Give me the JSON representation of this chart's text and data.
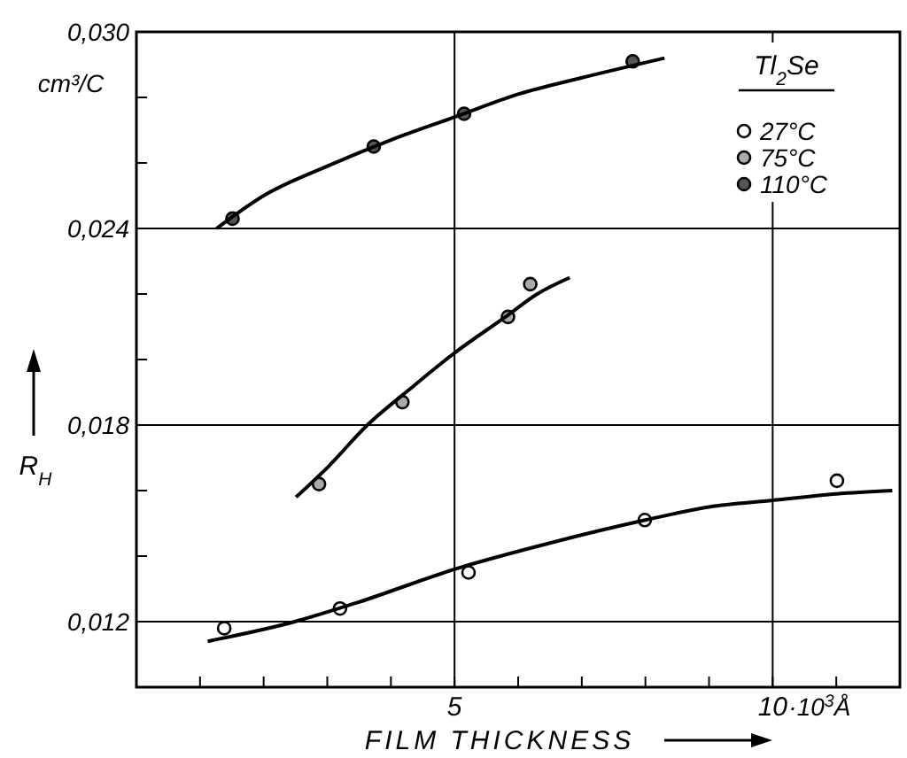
{
  "chart_data": {
    "type": "scatter",
    "xlabel": "FILM THICKNESS",
    "ylabel": "R$_{H}$",
    "legend_title": "Tl$_{2}$Se",
    "annotations": [
      "cm³/C",
      "·10$^{3}$Å"
    ],
    "xlim": [
      0,
      12
    ],
    "xticks": [
      {
        "value": 1,
        "label": null
      },
      {
        "value": 2,
        "label": null
      },
      {
        "value": 3,
        "label": null
      },
      {
        "value": 4,
        "label": null
      },
      5,
      {
        "value": 6,
        "label": null
      },
      {
        "value": 7,
        "label": null
      },
      {
        "value": 8,
        "label": null
      },
      {
        "value": 9,
        "label": null
      },
      10,
      {
        "value": 11,
        "label": null
      }
    ],
    "ylim": [
      0.01,
      0.03
    ],
    "yticks": [
      {
        "value": 0.012,
        "label": "0,012"
      },
      {
        "value": 0.014,
        "label": null
      },
      {
        "value": 0.016,
        "label": null
      },
      {
        "value": 0.018,
        "label": "0,018"
      },
      {
        "value": 0.02,
        "label": null
      },
      {
        "value": 0.022,
        "label": null
      },
      {
        "value": 0.024,
        "label": "0,024"
      },
      {
        "value": 0.026,
        "label": null
      },
      {
        "value": 0.028,
        "label": null
      },
      {
        "value": 0.03,
        "label": "0,030"
      }
    ],
    "grid": true,
    "legend": "top right",
    "marker": "circle",
    "series": [
      {
        "name": "27°C",
        "color": "#ffffff",
        "x": [
          1.38,
          3.2,
          5.22,
          7.99,
          11.01
        ],
        "values": [
          0.0118,
          0.0124,
          0.0135,
          0.0151,
          0.0163
        ]
      },
      {
        "name": "75°C",
        "color": "#aaaaaa",
        "x": [
          2.87,
          4.18,
          5.84,
          6.19
        ],
        "values": [
          0.0162,
          0.0187,
          0.0213,
          0.0223
        ]
      },
      {
        "name": "110°C",
        "color": "#555555",
        "x": [
          1.51,
          3.73,
          5.15,
          7.8
        ],
        "values": [
          0.0243,
          0.0265,
          0.0275,
          0.0291
        ]
      },
      {
        "type": "line",
        "color": "#000000",
        "marker": "none",
        "x": [
          1.12,
          2.49,
          3.5,
          5,
          6.5,
          8,
          9,
          10,
          11,
          11.88
        ],
        "values": [
          0.0114,
          0.012,
          0.0126,
          0.0136,
          0.0144,
          0.0151,
          0.0155,
          0.0157,
          0.0159,
          0.016
        ]
      },
      {
        "type": "line",
        "color": "#000000",
        "marker": "none",
        "x": [
          2.51,
          3,
          3.63,
          4.3,
          5,
          5.8,
          6.3,
          6.81
        ],
        "values": [
          0.0158,
          0.0167,
          0.018,
          0.0191,
          0.0202,
          0.0213,
          0.022,
          0.0225
        ]
      },
      {
        "type": "line",
        "color": "#000000",
        "marker": "none",
        "x": [
          1.26,
          2,
          3,
          4,
          5,
          6,
          7,
          8.3
        ],
        "values": [
          0.024,
          0.025,
          0.0259,
          0.0267,
          0.0274,
          0.0281,
          0.0286,
          0.0292
        ]
      }
    ]
  }
}
